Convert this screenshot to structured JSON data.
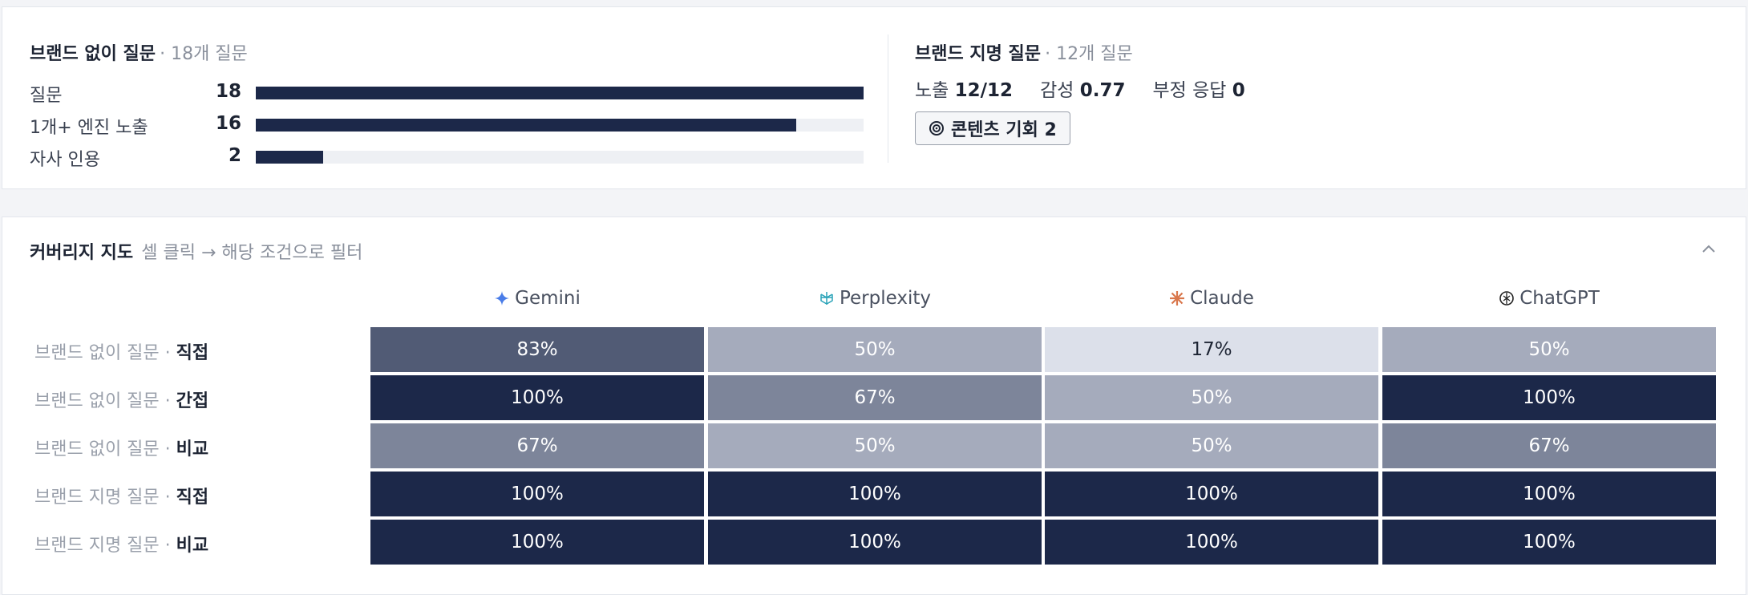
{
  "unbranded": {
    "title": "브랜드 없이 질문",
    "subtitle": "· 18개 질문",
    "rows": [
      {
        "label": "질문",
        "value": 18
      },
      {
        "label": "1개+ 엔진 노출",
        "value": 16
      },
      {
        "label": "자사 인용",
        "value": 2
      }
    ]
  },
  "branded": {
    "title": "브랜드 지명 질문",
    "subtitle": "· 12개 질문",
    "metrics": [
      {
        "label": "노출",
        "value": "12/12"
      },
      {
        "label": "감성",
        "value": "0.77"
      },
      {
        "label": "부정 응답",
        "value": "0"
      }
    ],
    "button": "콘텐츠 기회 2"
  },
  "coverage": {
    "title": "커버리지 지도",
    "hint": "셀 클릭 → 해당 조건으로 필터",
    "columns": [
      "Gemini",
      "Perplexity",
      "Claude",
      "ChatGPT"
    ],
    "rows": [
      {
        "group": "브랜드 없이 질문 ·",
        "kind": "직접",
        "cells": [
          {
            "value": 83,
            "label": "83%"
          },
          {
            "value": 50,
            "label": "50%"
          },
          {
            "value": 17,
            "label": "17%"
          },
          {
            "value": 50,
            "label": "50%"
          }
        ]
      },
      {
        "group": "브랜드 없이 질문 ·",
        "kind": "간접",
        "cells": [
          {
            "value": 100,
            "label": "100%"
          },
          {
            "value": 67,
            "label": "67%"
          },
          {
            "value": 50,
            "label": "50%"
          },
          {
            "value": 100,
            "label": "100%"
          }
        ]
      },
      {
        "group": "브랜드 없이 질문 ·",
        "kind": "비교",
        "cells": [
          {
            "value": 67,
            "label": "67%"
          },
          {
            "value": 50,
            "label": "50%"
          },
          {
            "value": 50,
            "label": "50%"
          },
          {
            "value": 67,
            "label": "67%"
          }
        ]
      },
      {
        "group": "브랜드 지명 질문 ·",
        "kind": "직접",
        "cells": [
          {
            "value": 100,
            "label": "100%"
          },
          {
            "value": 100,
            "label": "100%"
          },
          {
            "value": 100,
            "label": "100%"
          },
          {
            "value": 100,
            "label": "100%"
          }
        ]
      },
      {
        "group": "브랜드 지명 질문 ·",
        "kind": "비교",
        "cells": [
          {
            "value": 100,
            "label": "100%"
          },
          {
            "value": 100,
            "label": "100%"
          },
          {
            "value": 100,
            "label": "100%"
          },
          {
            "value": 100,
            "label": "100%"
          }
        ]
      }
    ]
  }
}
